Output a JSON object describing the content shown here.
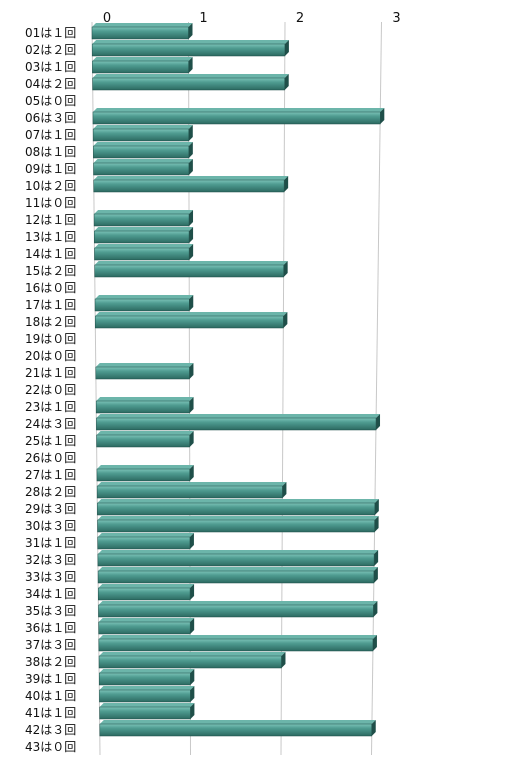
{
  "chart_data": {
    "type": "bar",
    "orientation": "horizontal",
    "style": "3d",
    "bar_color": "#3e8a80",
    "bar_highlight": "#6cb5aa",
    "bar_shadow": "#1f4f49",
    "grid": true,
    "xlim": [
      0,
      3
    ],
    "xticks": [
      "0",
      "1",
      "2",
      "3"
    ],
    "categories": [
      "01は１回",
      "02は２回",
      "03は１回",
      "04は２回",
      "05は０回",
      "06は３回",
      "07は１回",
      "08は１回",
      "09は１回",
      "10は２回",
      "11は０回",
      "12は１回",
      "13は１回",
      "14は１回",
      "15は２回",
      "16は０回",
      "17は１回",
      "18は２回",
      "19は０回",
      "20は０回",
      "21は１回",
      "22は０回",
      "23は１回",
      "24は３回",
      "25は１回",
      "26は０回",
      "27は１回",
      "28は２回",
      "29は３回",
      "30は３回",
      "31は１回",
      "32は３回",
      "33は３回",
      "34は１回",
      "35は３回",
      "36は１回",
      "37は３回",
      "38は２回",
      "39は１回",
      "40は１回",
      "41は１回",
      "42は３回",
      "43は０回"
    ],
    "values": [
      1,
      2,
      1,
      2,
      0,
      3,
      1,
      1,
      1,
      2,
      0,
      1,
      1,
      1,
      2,
      0,
      1,
      2,
      0,
      0,
      1,
      0,
      1,
      3,
      1,
      0,
      1,
      2,
      3,
      3,
      1,
      3,
      3,
      1,
      3,
      1,
      3,
      2,
      1,
      1,
      1,
      3,
      0
    ]
  }
}
